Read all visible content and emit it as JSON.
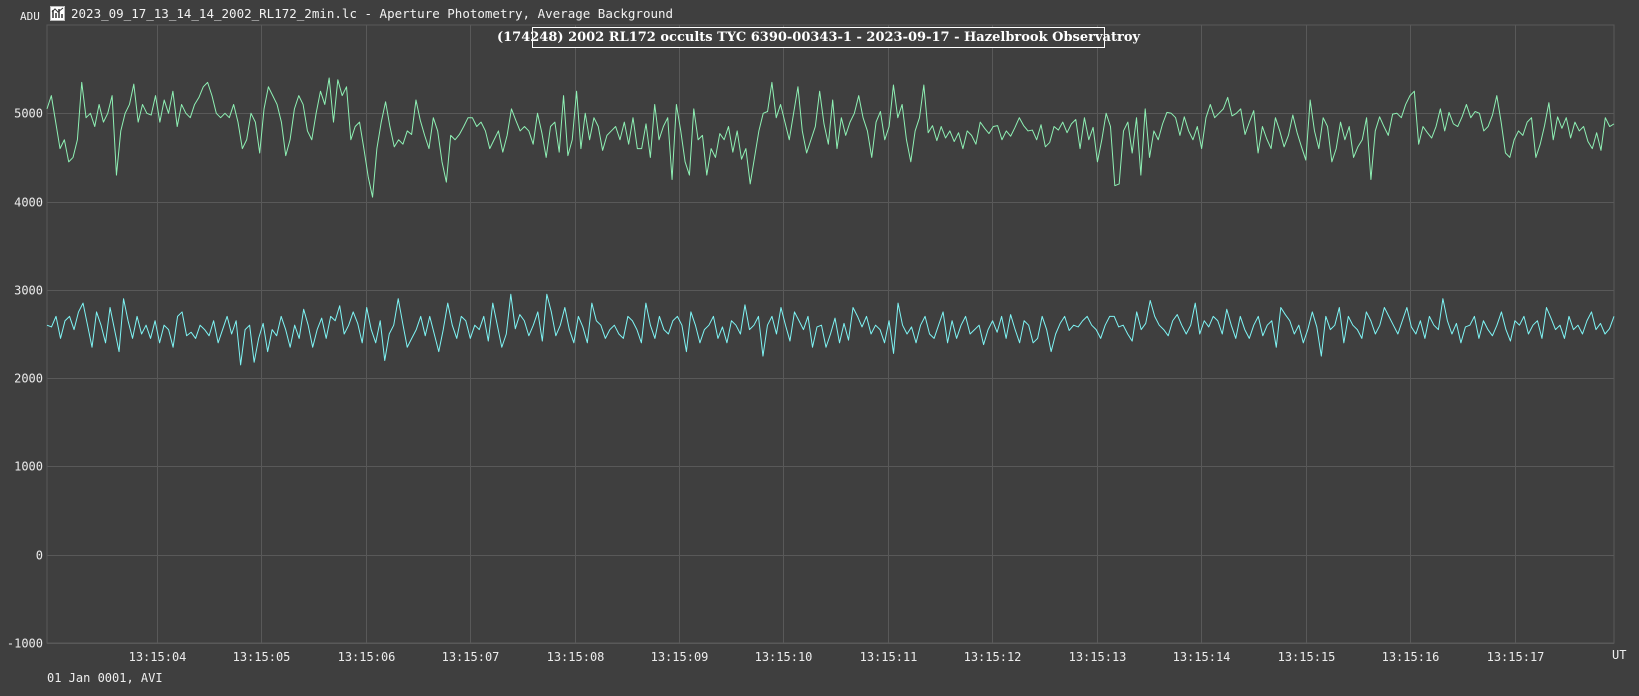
{
  "window": {
    "title": "2023_09_17_13_14_14_2002_RL172_2min.lc - Aperture Photometry, Average Background",
    "icon": "lightcurve-app-icon"
  },
  "footer": {
    "text": "01 Jan 0001, AVI"
  },
  "chart_data": {
    "type": "line",
    "title": "(174248) 2002 RL172 occults TYC 6390-00343-1 - 2023-09-17 - Hazelbrook Observatroy",
    "ylabel": "ADU",
    "xlabel": "UT",
    "ylim": [
      -1000,
      6000
    ],
    "xlim": [
      "13:15:02.95",
      "13:15:17.95"
    ],
    "y_ticks": [
      -1000,
      0,
      1000,
      2000,
      3000,
      4000,
      5000
    ],
    "x_ticks": [
      "13:15:04",
      "13:15:05",
      "13:15:06",
      "13:15:07",
      "13:15:08",
      "13:15:09",
      "13:15:10",
      "13:15:11",
      "13:15:12",
      "13:15:13",
      "13:15:14",
      "13:15:15",
      "13:15:16",
      "13:15:17"
    ],
    "grid": true,
    "background": "#3f3f3f",
    "grid_color": "#595959",
    "series": [
      {
        "color": "#8ef0b4",
        "values": [
          5050,
          5200,
          4900,
          4600,
          4700,
          4450,
          4500,
          4700,
          5350,
          4950,
          5000,
          4850,
          5100,
          4900,
          5000,
          5200,
          4300,
          4800,
          5000,
          5100,
          5330,
          4900,
          5100,
          5000,
          4980,
          5200,
          4900,
          5150,
          5000,
          5250,
          4850,
          5100,
          5000,
          4950,
          5100,
          5180,
          5300,
          5350,
          5200,
          5000,
          4950,
          5000,
          4950,
          5100,
          4900,
          4600,
          4700,
          5000,
          4900,
          4550,
          5050,
          5300,
          5200,
          5100,
          4900,
          4520,
          4700,
          5050,
          5200,
          5100,
          4800,
          4700,
          5000,
          5250,
          5100,
          5400,
          4900,
          5380,
          5200,
          5300,
          4700,
          4850,
          4900,
          4600,
          4280,
          4050,
          4600,
          4900,
          5130,
          4850,
          4620,
          4700,
          4650,
          4800,
          4760,
          5150,
          4920,
          4750,
          4600,
          4950,
          4800,
          4450,
          4220,
          4750,
          4700,
          4760,
          4850,
          4950,
          4950,
          4850,
          4900,
          4800,
          4600,
          4700,
          4800,
          4560,
          4750,
          5050,
          4920,
          4800,
          4850,
          4800,
          4650,
          5000,
          4780,
          4500,
          4850,
          4900,
          4560,
          5200,
          4520,
          4700,
          5250,
          4600,
          5000,
          4700,
          4950,
          4850,
          4580,
          4750,
          4800,
          4850,
          4700,
          4900,
          4650,
          4950,
          4600,
          4600,
          4880,
          4500,
          5100,
          4700,
          4850,
          4950,
          4250,
          5100,
          4800,
          4450,
          4300,
          5050,
          4700,
          4750,
          4300,
          4600,
          4500,
          4770,
          4700,
          4850,
          4560,
          4800,
          4480,
          4600,
          4200,
          4500,
          4800,
          5000,
          5020,
          5350,
          4950,
          5100,
          4900,
          4700,
          5000,
          5300,
          4800,
          4550,
          4700,
          4850,
          5250,
          4880,
          4650,
          5150,
          4600,
          4950,
          4750,
          4900,
          5000,
          5200,
          4950,
          4800,
          4500,
          4900,
          5020,
          4700,
          4850,
          5320,
          4950,
          5100,
          4700,
          4450,
          4800,
          4950,
          5320,
          4780,
          4860,
          4690,
          4850,
          4720,
          4800,
          4680,
          4780,
          4600,
          4800,
          4750,
          4650,
          4900,
          4830,
          4770,
          4850,
          4860,
          4700,
          4800,
          4740,
          4840,
          4950,
          4860,
          4800,
          4810,
          4700,
          4870,
          4620,
          4670,
          4850,
          4810,
          4900,
          4780,
          4880,
          4930,
          4600,
          4950,
          4700,
          4840,
          4450,
          4700,
          5000,
          4850,
          4180,
          4200,
          4800,
          4900,
          4550,
          4950,
          4300,
          5050,
          4500,
          4800,
          4700,
          4880,
          5010,
          5000,
          4950,
          4750,
          4960,
          4800,
          4700,
          4850,
          4600,
          4950,
          5100,
          4950,
          5000,
          5050,
          5180,
          4970,
          5000,
          5050,
          4760,
          4900,
          5030,
          4550,
          4850,
          4710,
          4600,
          4950,
          4800,
          4620,
          4750,
          4980,
          4780,
          4620,
          4470,
          5150,
          4800,
          4600,
          4950,
          4850,
          4450,
          4600,
          4900,
          4700,
          4850,
          4500,
          4620,
          4700,
          4950,
          4250,
          4800,
          4960,
          4850,
          4750,
          4990,
          5000,
          4950,
          5100,
          5200,
          5250,
          4650,
          4850,
          4780,
          4720,
          4850,
          5050,
          4800,
          5010,
          4880,
          4850,
          4960,
          5100,
          4950,
          5020,
          5000,
          4800,
          4850,
          4980,
          5200,
          4900,
          4550,
          4500,
          4700,
          4800,
          4750,
          4900,
          4950,
          4500,
          4650,
          4860,
          5120,
          4700,
          4960,
          4830,
          4950,
          4720,
          4900,
          4800,
          4850,
          4680,
          4600,
          4780,
          4580,
          4950,
          4850,
          4880
        ]
      },
      {
        "color": "#7ef4f4",
        "values": [
          2600,
          2580,
          2700,
          2450,
          2650,
          2700,
          2550,
          2750,
          2850,
          2600,
          2350,
          2750,
          2600,
          2400,
          2800,
          2550,
          2300,
          2900,
          2650,
          2450,
          2700,
          2500,
          2600,
          2450,
          2650,
          2400,
          2600,
          2550,
          2350,
          2700,
          2750,
          2480,
          2520,
          2450,
          2600,
          2550,
          2480,
          2650,
          2400,
          2550,
          2700,
          2500,
          2650,
          2150,
          2550,
          2600,
          2180,
          2450,
          2620,
          2300,
          2550,
          2480,
          2700,
          2550,
          2350,
          2600,
          2450,
          2780,
          2600,
          2350,
          2550,
          2680,
          2450,
          2700,
          2650,
          2820,
          2500,
          2600,
          2750,
          2620,
          2400,
          2800,
          2550,
          2400,
          2650,
          2200,
          2500,
          2600,
          2900,
          2620,
          2350,
          2450,
          2550,
          2700,
          2480,
          2700,
          2500,
          2300,
          2550,
          2850,
          2600,
          2450,
          2700,
          2650,
          2450,
          2600,
          2550,
          2700,
          2420,
          2850,
          2600,
          2350,
          2500,
          2950,
          2560,
          2720,
          2650,
          2480,
          2600,
          2750,
          2420,
          2950,
          2750,
          2480,
          2600,
          2800,
          2550,
          2400,
          2700,
          2580,
          2400,
          2850,
          2650,
          2600,
          2450,
          2550,
          2600,
          2500,
          2450,
          2700,
          2650,
          2550,
          2400,
          2850,
          2600,
          2450,
          2700,
          2550,
          2500,
          2650,
          2700,
          2600,
          2300,
          2750,
          2600,
          2400,
          2550,
          2600,
          2700,
          2450,
          2580,
          2400,
          2650,
          2600,
          2500,
          2830,
          2550,
          2600,
          2700,
          2250,
          2600,
          2700,
          2500,
          2800,
          2600,
          2420,
          2750,
          2650,
          2550,
          2700,
          2350,
          2580,
          2600,
          2350,
          2500,
          2680,
          2400,
          2620,
          2430,
          2800,
          2700,
          2580,
          2700,
          2500,
          2600,
          2550,
          2400,
          2650,
          2280,
          2850,
          2600,
          2500,
          2580,
          2400,
          2600,
          2700,
          2500,
          2450,
          2600,
          2750,
          2400,
          2650,
          2450,
          2600,
          2700,
          2500,
          2550,
          2600,
          2380,
          2550,
          2650,
          2520,
          2700,
          2450,
          2720,
          2550,
          2400,
          2650,
          2600,
          2400,
          2450,
          2700,
          2550,
          2300,
          2500,
          2620,
          2700,
          2540,
          2600,
          2580,
          2650,
          2700,
          2600,
          2550,
          2450,
          2600,
          2700,
          2700,
          2580,
          2600,
          2500,
          2420,
          2750,
          2550,
          2620,
          2880,
          2700,
          2600,
          2550,
          2480,
          2650,
          2720,
          2600,
          2500,
          2600,
          2850,
          2500,
          2650,
          2580,
          2700,
          2650,
          2500,
          2780,
          2600,
          2450,
          2700,
          2550,
          2450,
          2600,
          2700,
          2480,
          2600,
          2650,
          2350,
          2800,
          2720,
          2650,
          2500,
          2600,
          2400,
          2550,
          2750,
          2580,
          2250,
          2700,
          2550,
          2600,
          2800,
          2400,
          2700,
          2600,
          2550,
          2450,
          2750,
          2650,
          2500,
          2600,
          2800,
          2700,
          2600,
          2500,
          2650,
          2800,
          2580,
          2500,
          2650,
          2450,
          2700,
          2600,
          2550,
          2900,
          2650,
          2500,
          2620,
          2400,
          2580,
          2600,
          2700,
          2450,
          2650,
          2550,
          2480,
          2600,
          2750,
          2550,
          2420,
          2650,
          2600,
          2700,
          2500,
          2600,
          2650,
          2450,
          2800,
          2680,
          2550,
          2600,
          2450,
          2700,
          2550,
          2600,
          2500,
          2650,
          2750,
          2550,
          2620,
          2500,
          2560,
          2700
        ]
      }
    ]
  }
}
